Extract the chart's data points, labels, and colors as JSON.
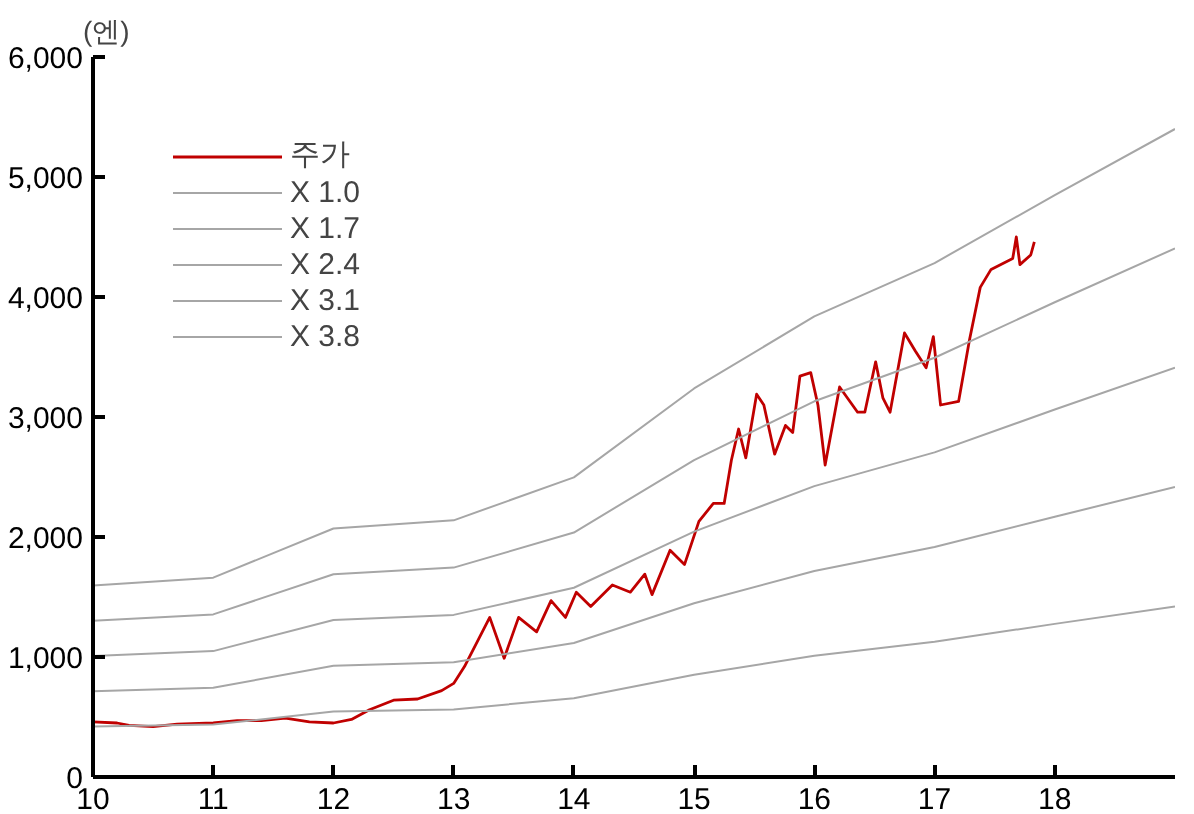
{
  "chart_data": {
    "type": "line",
    "ylabel": "(엔)",
    "xlim": [
      10,
      19
    ],
    "xticks": [
      10,
      11,
      12,
      13,
      14,
      15,
      16,
      17,
      18
    ],
    "ylim": [
      0,
      6000
    ],
    "yticks": [
      0,
      {
        "value": 1000,
        "label": "1,000"
      },
      {
        "value": 2000,
        "label": "2,000"
      },
      {
        "value": 3000,
        "label": "3,000"
      },
      {
        "value": 4000,
        "label": "4,000"
      },
      {
        "value": 5000,
        "label": "5,000"
      },
      {
        "value": 6000,
        "label": "6,000"
      }
    ],
    "grid": false,
    "legend": "top left",
    "marker": "none",
    "line_style": "solid",
    "series": [
      {
        "name": "주가",
        "color": "#c00000",
        "x": [
          10.0,
          10.2,
          10.3,
          10.5,
          10.7,
          11.0,
          11.2,
          11.4,
          11.6,
          11.8,
          12.0,
          12.15,
          12.3,
          12.5,
          12.7,
          12.9,
          13.0,
          13.09,
          13.3,
          13.42,
          13.54,
          13.69,
          13.81,
          13.93,
          14.02,
          14.14,
          14.32,
          14.47,
          14.59,
          14.65,
          14.8,
          14.92,
          15.04,
          15.16,
          15.25,
          15.31,
          15.37,
          15.43,
          15.52,
          15.58,
          15.67,
          15.76,
          15.82,
          15.88,
          15.97,
          16.03,
          16.09,
          16.21,
          16.36,
          16.42,
          16.51,
          16.57,
          16.63,
          16.75,
          16.84,
          16.93,
          16.99,
          17.05,
          17.2,
          17.29,
          17.38,
          17.47,
          17.65,
          17.68,
          17.71,
          17.8,
          17.83
        ],
        "values": [
          460,
          450,
          430,
          420,
          440,
          450,
          470,
          470,
          490,
          460,
          450,
          480,
          560,
          640,
          650,
          720,
          780,
          920,
          1330,
          990,
          1330,
          1210,
          1470,
          1330,
          1540,
          1420,
          1600,
          1540,
          1690,
          1520,
          1890,
          1770,
          2130,
          2280,
          2280,
          2640,
          2900,
          2660,
          3190,
          3100,
          2690,
          2930,
          2870,
          3340,
          3370,
          3100,
          2600,
          3250,
          3040,
          3040,
          3460,
          3160,
          3040,
          3700,
          3550,
          3410,
          3670,
          3100,
          3130,
          3640,
          4080,
          4230,
          4320,
          4500,
          4270,
          4350,
          4460
        ]
      },
      {
        "name": "X 1.0",
        "color": "#a6a6a6",
        "x": [
          10,
          11,
          12,
          13,
          14,
          15,
          16,
          17,
          18,
          19
        ],
        "values": [
          420,
          437,
          545,
          563,
          657,
          852,
          1010,
          1127,
          1276,
          1421
        ]
      },
      {
        "name": "X 1.7",
        "color": "#a6a6a6",
        "x": [
          10,
          11,
          12,
          13,
          14,
          15,
          16,
          17,
          18,
          19
        ],
        "values": [
          714,
          743,
          927,
          957,
          1117,
          1448,
          1717,
          1916,
          2169,
          2416
        ]
      },
      {
        "name": "X 2.4",
        "color": "#a6a6a6",
        "x": [
          10,
          11,
          12,
          13,
          14,
          15,
          16,
          17,
          18,
          19
        ],
        "values": [
          1008,
          1049,
          1308,
          1351,
          1577,
          2045,
          2424,
          2705,
          3062,
          3410
        ]
      },
      {
        "name": "X 3.1",
        "color": "#a6a6a6",
        "x": [
          10,
          11,
          12,
          13,
          14,
          15,
          16,
          17,
          18,
          19
        ],
        "values": [
          1302,
          1355,
          1690,
          1745,
          2037,
          2641,
          3131,
          3494,
          3956,
          4405
        ]
      },
      {
        "name": "X 3.8",
        "color": "#a6a6a6",
        "x": [
          10,
          11,
          12,
          13,
          14,
          15,
          16,
          17,
          18,
          19
        ],
        "values": [
          1596,
          1661,
          2071,
          2139,
          2497,
          3238,
          3838,
          4283,
          4849,
          5400
        ]
      }
    ]
  }
}
